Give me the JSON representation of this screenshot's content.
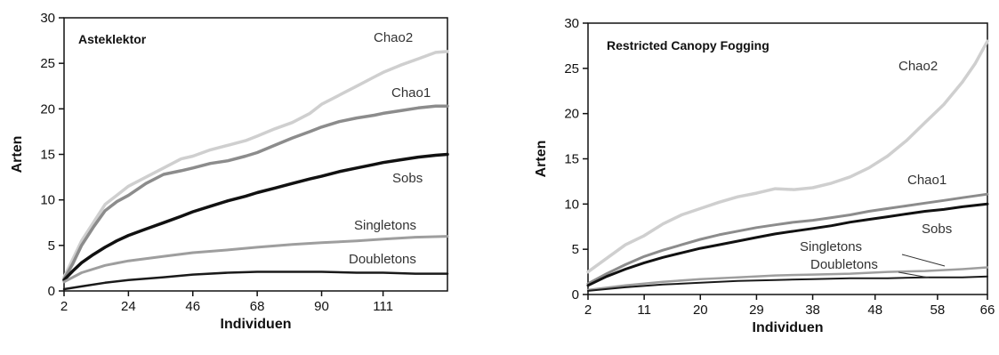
{
  "chart_data": [
    {
      "type": "line",
      "title": "Asteklektor",
      "xlabel": "Individuen",
      "ylabel": "Arten",
      "xlim": [
        2,
        133
      ],
      "ylim": [
        0,
        30
      ],
      "xticks": [
        2,
        24,
        46,
        68,
        90,
        111
      ],
      "yticks": [
        0,
        5,
        10,
        15,
        20,
        25,
        30
      ],
      "series": [
        {
          "name": "Chao2",
          "color": "#cfcfcf",
          "width": 3.5,
          "x": [
            2,
            5,
            8,
            12,
            16,
            20,
            24,
            30,
            36,
            42,
            46,
            52,
            58,
            64,
            68,
            74,
            80,
            86,
            90,
            96,
            102,
            108,
            111,
            117,
            123,
            129,
            133
          ],
          "y": [
            1.5,
            3.5,
            5.5,
            7.5,
            9.5,
            10.5,
            11.5,
            12.5,
            13.5,
            14.5,
            14.8,
            15.5,
            16,
            16.5,
            17,
            17.8,
            18.5,
            19.5,
            20.5,
            21.5,
            22.5,
            23.5,
            24,
            24.8,
            25.5,
            26.2,
            26.3
          ]
        },
        {
          "name": "Chao1",
          "color": "#8c8c8c",
          "width": 3.5,
          "x": [
            2,
            5,
            8,
            12,
            16,
            20,
            24,
            30,
            36,
            42,
            46,
            52,
            58,
            64,
            68,
            74,
            80,
            86,
            90,
            96,
            102,
            108,
            111,
            117,
            123,
            129,
            133
          ],
          "y": [
            1.3,
            3,
            5,
            7,
            8.8,
            9.8,
            10.5,
            11.8,
            12.8,
            13.2,
            13.5,
            14,
            14.3,
            14.8,
            15.2,
            16,
            16.8,
            17.5,
            18,
            18.6,
            19,
            19.3,
            19.5,
            19.8,
            20.1,
            20.3,
            20.3
          ]
        },
        {
          "name": "Sobs",
          "color": "#111111",
          "width": 3.5,
          "x": [
            2,
            5,
            8,
            12,
            16,
            20,
            24,
            30,
            36,
            42,
            46,
            52,
            58,
            64,
            68,
            74,
            80,
            86,
            90,
            96,
            102,
            108,
            111,
            117,
            123,
            129,
            133
          ],
          "y": [
            1.2,
            2.2,
            3.1,
            4,
            4.8,
            5.5,
            6.1,
            6.8,
            7.5,
            8.2,
            8.7,
            9.3,
            9.9,
            10.4,
            10.8,
            11.3,
            11.8,
            12.3,
            12.6,
            13.1,
            13.5,
            13.9,
            14.1,
            14.4,
            14.7,
            14.9,
            15
          ]
        },
        {
          "name": "Singletons",
          "color": "#9e9e9e",
          "width": 3,
          "x": [
            2,
            8,
            16,
            24,
            36,
            46,
            58,
            68,
            80,
            90,
            102,
            111,
            122,
            133
          ],
          "y": [
            1,
            2,
            2.8,
            3.3,
            3.8,
            4.2,
            4.5,
            4.8,
            5.1,
            5.3,
            5.5,
            5.7,
            5.9,
            6
          ]
        },
        {
          "name": "Doubletons",
          "color": "#1a1a1a",
          "width": 2.5,
          "x": [
            2,
            8,
            16,
            24,
            36,
            46,
            58,
            68,
            80,
            90,
            102,
            111,
            122,
            133
          ],
          "y": [
            0.2,
            0.5,
            0.9,
            1.2,
            1.5,
            1.8,
            2,
            2.1,
            2.1,
            2.1,
            2,
            2,
            1.9,
            1.9
          ]
        }
      ]
    },
    {
      "type": "line",
      "title": "Restricted Canopy Fogging",
      "xlabel": "Individuen",
      "ylabel": "Arten",
      "xlim": [
        2,
        66
      ],
      "ylim": [
        0,
        30
      ],
      "xticks": [
        2,
        11,
        20,
        29,
        38,
        48,
        58,
        66
      ],
      "yticks": [
        0,
        5,
        10,
        15,
        20,
        25,
        30
      ],
      "series": [
        {
          "name": "Chao2",
          "color": "#cfcfcf",
          "width": 3.5,
          "x": [
            2,
            5,
            8,
            11,
            14,
            17,
            20,
            23,
            26,
            29,
            32,
            35,
            38,
            41,
            44,
            47,
            50,
            53,
            56,
            59,
            62,
            64,
            66
          ],
          "y": [
            2.5,
            4,
            5.5,
            6.5,
            7.8,
            8.8,
            9.5,
            10.2,
            10.8,
            11.2,
            11.7,
            11.6,
            11.8,
            12.3,
            13,
            14,
            15.3,
            17,
            19,
            21,
            23.5,
            25.5,
            28
          ]
        },
        {
          "name": "Chao1",
          "color": "#8c8c8c",
          "width": 3,
          "x": [
            2,
            5,
            8,
            11,
            14,
            17,
            20,
            23,
            26,
            29,
            32,
            35,
            38,
            41,
            44,
            47,
            50,
            53,
            56,
            59,
            62,
            66
          ],
          "y": [
            1.2,
            2.3,
            3.3,
            4.2,
            4.9,
            5.5,
            6.1,
            6.6,
            7,
            7.4,
            7.7,
            8,
            8.2,
            8.5,
            8.8,
            9.2,
            9.5,
            9.8,
            10.1,
            10.4,
            10.7,
            11.1
          ]
        },
        {
          "name": "Sobs",
          "color": "#111111",
          "width": 3,
          "x": [
            2,
            5,
            8,
            11,
            14,
            17,
            20,
            23,
            26,
            29,
            32,
            35,
            38,
            41,
            44,
            47,
            50,
            53,
            56,
            59,
            62,
            66
          ],
          "y": [
            1,
            2,
            2.8,
            3.5,
            4.1,
            4.6,
            5.1,
            5.5,
            5.9,
            6.3,
            6.7,
            7,
            7.3,
            7.6,
            8,
            8.3,
            8.6,
            8.9,
            9.2,
            9.4,
            9.7,
            10
          ]
        },
        {
          "name": "Singletons",
          "color": "#9e9e9e",
          "width": 2.5,
          "x": [
            2,
            8,
            14,
            20,
            26,
            32,
            38,
            44,
            50,
            56,
            62,
            66
          ],
          "y": [
            0.5,
            1,
            1.4,
            1.7,
            1.9,
            2.1,
            2.2,
            2.3,
            2.5,
            2.6,
            2.8,
            3
          ]
        },
        {
          "name": "Doubletons",
          "color": "#1a1a1a",
          "width": 2,
          "x": [
            2,
            8,
            14,
            20,
            26,
            32,
            38,
            44,
            50,
            56,
            62,
            66
          ],
          "y": [
            0.4,
            0.8,
            1.1,
            1.3,
            1.5,
            1.6,
            1.7,
            1.8,
            1.8,
            1.9,
            1.9,
            2
          ]
        }
      ]
    }
  ]
}
